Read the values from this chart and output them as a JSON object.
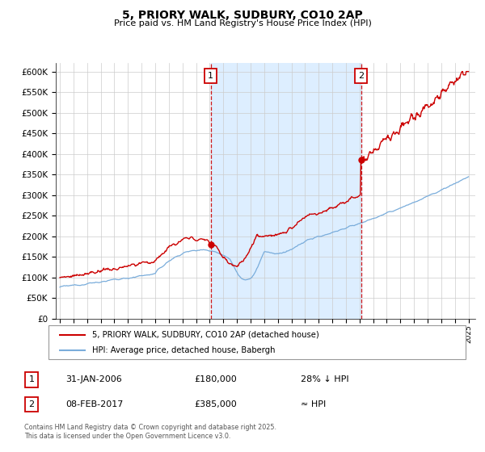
{
  "title": "5, PRIORY WALK, SUDBURY, CO10 2AP",
  "subtitle": "Price paid vs. HM Land Registry's House Price Index (HPI)",
  "ylim": [
    0,
    620000
  ],
  "yticks": [
    0,
    50000,
    100000,
    150000,
    200000,
    250000,
    300000,
    350000,
    400000,
    450000,
    500000,
    550000,
    600000
  ],
  "ytick_labels": [
    "£0",
    "£50K",
    "£100K",
    "£150K",
    "£200K",
    "£250K",
    "£300K",
    "£350K",
    "£400K",
    "£450K",
    "£500K",
    "£550K",
    "£600K"
  ],
  "xlim_start": 1994.7,
  "xlim_end": 2025.5,
  "xticks": [
    1995,
    1996,
    1997,
    1998,
    1999,
    2000,
    2001,
    2002,
    2003,
    2004,
    2005,
    2006,
    2007,
    2008,
    2009,
    2010,
    2011,
    2012,
    2013,
    2014,
    2015,
    2016,
    2017,
    2018,
    2019,
    2020,
    2021,
    2022,
    2023,
    2024,
    2025
  ],
  "sale1_x": 2006.083,
  "sale1_y": 180000,
  "sale1_label": "1",
  "sale2_x": 2017.117,
  "sale2_y": 385000,
  "sale2_label": "2",
  "red_line_color": "#cc0000",
  "blue_line_color": "#7aaddb",
  "shade_color": "#ddeeff",
  "annotation_box_color": "#cc0000",
  "vline_color": "#cc0000",
  "grid_color": "#cccccc",
  "legend_label_red": "5, PRIORY WALK, SUDBURY, CO10 2AP (detached house)",
  "legend_label_blue": "HPI: Average price, detached house, Babergh",
  "footnote": "Contains HM Land Registry data © Crown copyright and database right 2025.\nThis data is licensed under the Open Government Licence v3.0.",
  "table_row1": [
    "1",
    "31-JAN-2006",
    "£180,000",
    "28% ↓ HPI"
  ],
  "table_row2": [
    "2",
    "08-FEB-2017",
    "£385,000",
    "≈ HPI"
  ]
}
